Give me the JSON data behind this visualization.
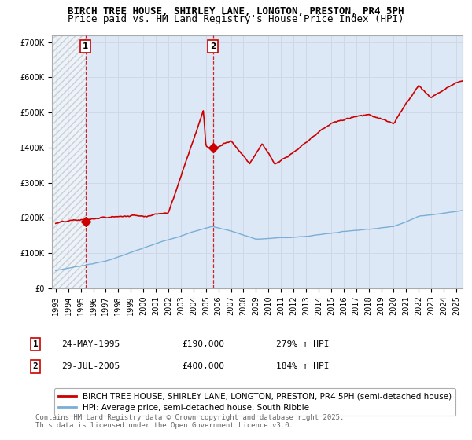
{
  "title": "BIRCH TREE HOUSE, SHIRLEY LANE, LONGTON, PRESTON, PR4 5PH",
  "subtitle": "Price paid vs. HM Land Registry's House Price Index (HPI)",
  "ylim": [
    0,
    720000
  ],
  "yticks": [
    0,
    100000,
    200000,
    300000,
    400000,
    500000,
    600000,
    700000
  ],
  "ytick_labels": [
    "£0",
    "£100K",
    "£200K",
    "£300K",
    "£400K",
    "£500K",
    "£600K",
    "£700K"
  ],
  "xlim_start": 1992.7,
  "xlim_end": 2025.5,
  "transaction1_date": 1995.39,
  "transaction1_price": 190000,
  "transaction2_date": 2005.57,
  "transaction2_price": 400000,
  "price_line_color": "#cc0000",
  "hpi_line_color": "#7aaed6",
  "dashed_line_color": "#cc0000",
  "grid_color": "#d0d8e8",
  "bg_color": "#dce8f5",
  "legend_label_price": "BIRCH TREE HOUSE, SHIRLEY LANE, LONGTON, PRESTON, PR4 5PH (semi-detached house)",
  "legend_label_hpi": "HPI: Average price, semi-detached house, South Ribble",
  "annotation1_date": "24-MAY-1995",
  "annotation1_price": "£190,000",
  "annotation1_hpi": "279% ↑ HPI",
  "annotation2_date": "29-JUL-2005",
  "annotation2_price": "£400,000",
  "annotation2_hpi": "184% ↑ HPI",
  "footer": "Contains HM Land Registry data © Crown copyright and database right 2025.\nThis data is licensed under the Open Government Licence v3.0.",
  "title_fontsize": 9,
  "subtitle_fontsize": 9,
  "tick_fontsize": 7,
  "legend_fontsize": 7.5,
  "annotation_fontsize": 8
}
